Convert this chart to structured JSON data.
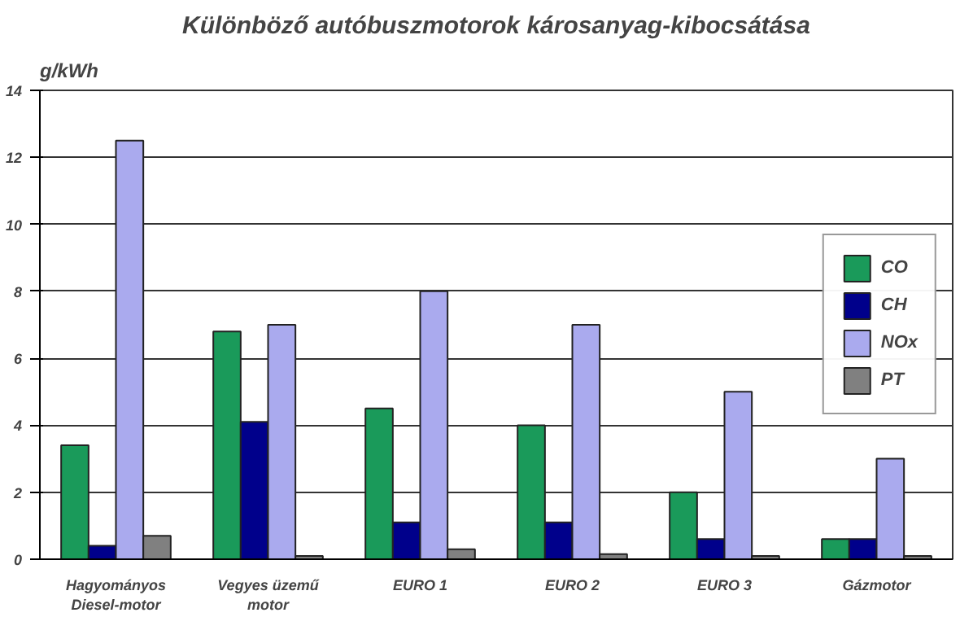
{
  "chart_data": {
    "type": "bar",
    "title": "Különböző autóbuszmotorok károsanyag-kibocsátása",
    "ylabel": "g/kWh",
    "categories": [
      "Hagyományos\nDiesel-motor",
      "Vegyes üzemű\nmotor",
      "EURO 1",
      "EURO 2",
      "EURO 3",
      "Gázmotor"
    ],
    "series": [
      {
        "name": "CO",
        "color": "#1a9a5a",
        "values": [
          3.4,
          6.8,
          4.5,
          4.0,
          2.0,
          0.6
        ]
      },
      {
        "name": "CH",
        "color": "#00008b",
        "values": [
          0.4,
          4.1,
          1.1,
          1.1,
          0.6,
          0.6
        ]
      },
      {
        "name": "NOx",
        "color": "#aaaaee",
        "values": [
          12.5,
          7.0,
          8.0,
          7.0,
          5.0,
          3.0
        ]
      },
      {
        "name": "PT",
        "color": "#808080",
        "values": [
          0.7,
          0.1,
          0.3,
          0.15,
          0.1,
          0.1
        ]
      }
    ],
    "ylim": [
      0,
      14
    ],
    "yticks": [
      0,
      2,
      4,
      6,
      8,
      10,
      12,
      14
    ],
    "grid": "y",
    "legend": "right"
  }
}
